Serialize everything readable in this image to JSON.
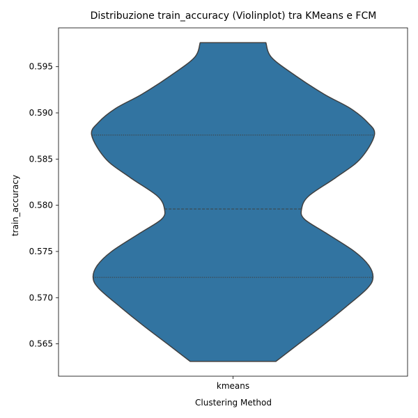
{
  "chart_data": {
    "type": "violin",
    "title": "Distribuzione train_accuracy (Violinplot) tra KMeans e FCM",
    "xlabel": "Clustering Method",
    "ylabel": "train_accuracy",
    "categories": [
      "kmeans"
    ],
    "ylim": [
      0.5615,
      0.5992
    ],
    "yticks": [
      0.565,
      0.57,
      0.575,
      0.58,
      0.585,
      0.59,
      0.595
    ],
    "ytick_labels": [
      "0.565",
      "0.570",
      "0.575",
      "0.580",
      "0.585",
      "0.590",
      "0.595"
    ],
    "violin": {
      "min": 0.5631,
      "max": 0.5976,
      "quartiles": [
        0.5722,
        0.5796,
        0.5876
      ],
      "density_profile": [
        [
          0.5631,
          0.3
        ],
        [
          0.565,
          0.46
        ],
        [
          0.567,
          0.63
        ],
        [
          0.569,
          0.79
        ],
        [
          0.571,
          0.94
        ],
        [
          0.5722,
          0.98
        ],
        [
          0.5735,
          0.95
        ],
        [
          0.575,
          0.85
        ],
        [
          0.577,
          0.65
        ],
        [
          0.5785,
          0.5
        ],
        [
          0.5796,
          0.48
        ],
        [
          0.581,
          0.53
        ],
        [
          0.583,
          0.72
        ],
        [
          0.585,
          0.89
        ],
        [
          0.5876,
          0.99
        ],
        [
          0.589,
          0.94
        ],
        [
          0.5905,
          0.82
        ],
        [
          0.592,
          0.64
        ],
        [
          0.594,
          0.44
        ],
        [
          0.596,
          0.27
        ],
        [
          0.5976,
          0.23
        ]
      ]
    },
    "colors": {
      "fill": "#3274a1",
      "edge": "#3f3f3f"
    },
    "grid": false,
    "legend": "none"
  }
}
